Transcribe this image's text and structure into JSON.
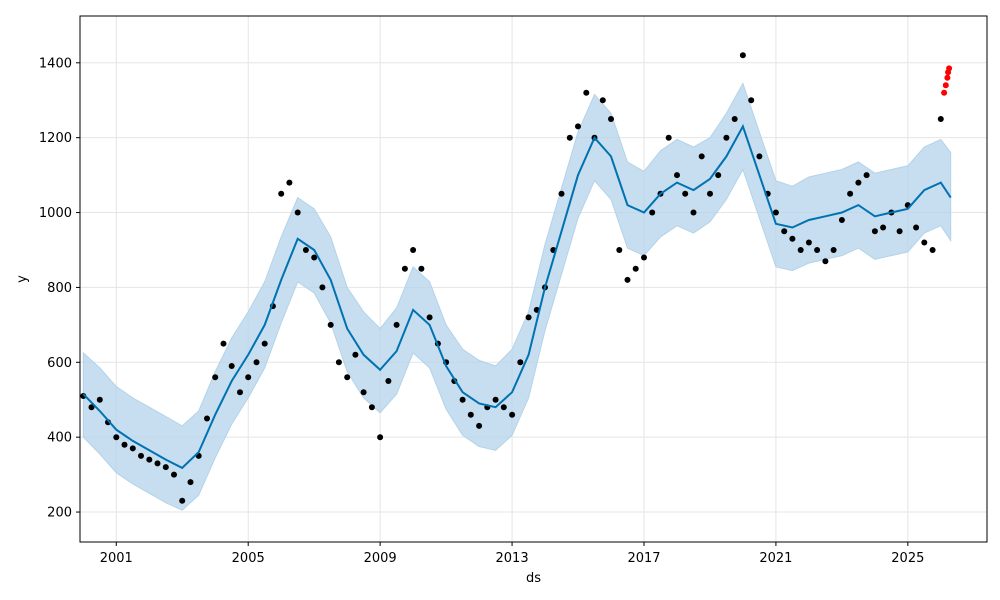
{
  "chart_data": {
    "type": "scatter",
    "xlabel": "ds",
    "ylabel": "y",
    "x_ticks": [
      "2001",
      "2005",
      "2009",
      "2013",
      "2017",
      "2021",
      "2025"
    ],
    "y_ticks": [
      "200",
      "400",
      "600",
      "800",
      "1000",
      "1200",
      "1400"
    ],
    "xlim": [
      1999.9,
      2027.4
    ],
    "ylim": [
      120,
      1525
    ],
    "grid": true,
    "colors": {
      "observed": "#000000",
      "recent": "#ff0000",
      "forecast": "#0072B2",
      "interval": "#B3D3EA",
      "grid": "#e5e5e5",
      "frame": "#000000"
    },
    "series": [
      {
        "role": "forecast",
        "x": [
          2000.0,
          2000.5,
          2001.0,
          2001.5,
          2002.0,
          2002.5,
          2003.0,
          2003.5,
          2004.0,
          2004.5,
          2005.0,
          2005.5,
          2006.0,
          2006.5,
          2007.0,
          2007.5,
          2008.0,
          2008.5,
          2009.0,
          2009.5,
          2010.0,
          2010.5,
          2011.0,
          2011.5,
          2012.0,
          2012.5,
          2013.0,
          2013.5,
          2014.0,
          2014.5,
          2015.0,
          2015.5,
          2016.0,
          2016.5,
          2017.0,
          2017.5,
          2018.0,
          2018.5,
          2019.0,
          2019.5,
          2020.0,
          2020.5,
          2021.0,
          2021.5,
          2022.0,
          2022.5,
          2023.0,
          2023.5,
          2024.0,
          2024.5,
          2025.0,
          2025.5,
          2026.0,
          2026.3
        ],
        "y": [
          515,
          470,
          420,
          390,
          365,
          340,
          318,
          360,
          460,
          550,
          620,
          700,
          820,
          930,
          900,
          820,
          690,
          620,
          580,
          630,
          740,
          700,
          590,
          520,
          490,
          480,
          520,
          620,
          800,
          950,
          1100,
          1200,
          1150,
          1020,
          1000,
          1050,
          1080,
          1060,
          1090,
          1150,
          1230,
          1100,
          970,
          960,
          980,
          990,
          1000,
          1020,
          990,
          1000,
          1010,
          1060,
          1080,
          1040
        ]
      },
      {
        "role": "interval_upper",
        "x": [
          2000.0,
          2000.5,
          2001.0,
          2001.5,
          2002.0,
          2002.5,
          2003.0,
          2003.5,
          2004.0,
          2004.5,
          2005.0,
          2005.5,
          2006.0,
          2006.5,
          2007.0,
          2007.5,
          2008.0,
          2008.5,
          2009.0,
          2009.5,
          2010.0,
          2010.5,
          2011.0,
          2011.5,
          2012.0,
          2012.5,
          2013.0,
          2013.5,
          2014.0,
          2014.5,
          2015.0,
          2015.5,
          2016.0,
          2016.5,
          2017.0,
          2017.5,
          2018.0,
          2018.5,
          2019.0,
          2019.5,
          2020.0,
          2020.5,
          2021.0,
          2021.5,
          2022.0,
          2022.5,
          2023.0,
          2023.5,
          2024.0,
          2024.5,
          2025.0,
          2025.5,
          2026.0,
          2026.3
        ],
        "y": [
          625,
          585,
          535,
          505,
          480,
          455,
          430,
          470,
          575,
          665,
          735,
          815,
          935,
          1040,
          1010,
          935,
          800,
          735,
          690,
          745,
          855,
          815,
          700,
          635,
          605,
          590,
          635,
          735,
          915,
          1065,
          1215,
          1315,
          1265,
          1135,
          1110,
          1165,
          1195,
          1175,
          1200,
          1265,
          1345,
          1215,
          1085,
          1070,
          1095,
          1105,
          1115,
          1135,
          1105,
          1115,
          1125,
          1175,
          1195,
          1160
        ]
      },
      {
        "role": "interval_lower",
        "x": [
          2000.0,
          2000.5,
          2001.0,
          2001.5,
          2002.0,
          2002.5,
          2003.0,
          2003.5,
          2004.0,
          2004.5,
          2005.0,
          2005.5,
          2006.0,
          2006.5,
          2007.0,
          2007.5,
          2008.0,
          2008.5,
          2009.0,
          2009.5,
          2010.0,
          2010.5,
          2011.0,
          2011.5,
          2012.0,
          2012.5,
          2013.0,
          2013.5,
          2014.0,
          2014.5,
          2015.0,
          2015.5,
          2016.0,
          2016.5,
          2017.0,
          2017.5,
          2018.0,
          2018.5,
          2019.0,
          2019.5,
          2020.0,
          2020.5,
          2021.0,
          2021.5,
          2022.0,
          2022.5,
          2023.0,
          2023.5,
          2024.0,
          2024.5,
          2025.0,
          2025.5,
          2026.0,
          2026.3
        ],
        "y": [
          400,
          355,
          305,
          275,
          250,
          225,
          205,
          245,
          345,
          435,
          505,
          585,
          705,
          815,
          785,
          705,
          575,
          505,
          465,
          515,
          625,
          585,
          475,
          405,
          375,
          365,
          405,
          505,
          685,
          835,
          985,
          1085,
          1035,
          905,
          885,
          935,
          965,
          945,
          975,
          1035,
          1115,
          985,
          855,
          845,
          865,
          875,
          885,
          905,
          875,
          885,
          895,
          945,
          965,
          925
        ]
      },
      {
        "role": "observed",
        "x": [
          2000.0,
          2000.25,
          2000.5,
          2000.75,
          2001.0,
          2001.25,
          2001.5,
          2001.75,
          2002.0,
          2002.25,
          2002.5,
          2002.75,
          2003.0,
          2003.25,
          2003.5,
          2003.75,
          2004.0,
          2004.25,
          2004.5,
          2004.75,
          2005.0,
          2005.25,
          2005.5,
          2005.75,
          2006.0,
          2006.25,
          2006.5,
          2006.75,
          2007.0,
          2007.25,
          2007.5,
          2007.75,
          2008.0,
          2008.25,
          2008.5,
          2008.75,
          2009.0,
          2009.25,
          2009.5,
          2009.75,
          2010.0,
          2010.25,
          2010.5,
          2010.75,
          2011.0,
          2011.25,
          2011.5,
          2011.75,
          2012.0,
          2012.25,
          2012.5,
          2012.75,
          2013.0,
          2013.25,
          2013.5,
          2013.75,
          2014.0,
          2014.25,
          2014.5,
          2014.75,
          2015.0,
          2015.25,
          2015.5,
          2015.75,
          2016.0,
          2016.25,
          2016.5,
          2016.75,
          2017.0,
          2017.25,
          2017.5,
          2017.75,
          2018.0,
          2018.25,
          2018.5,
          2018.75,
          2019.0,
          2019.25,
          2019.5,
          2019.75,
          2020.0,
          2020.25,
          2020.5,
          2020.75,
          2021.0,
          2021.25,
          2021.5,
          2021.75,
          2022.0,
          2022.25,
          2022.5,
          2022.75,
          2023.0,
          2023.25,
          2023.5,
          2023.75,
          2024.0,
          2024.25,
          2024.5,
          2024.75,
          2025.0,
          2025.25,
          2025.5,
          2025.75,
          2026.0
        ],
        "y": [
          510,
          480,
          500,
          440,
          400,
          380,
          370,
          350,
          340,
          330,
          320,
          300,
          230,
          280,
          350,
          450,
          560,
          650,
          590,
          520,
          560,
          600,
          650,
          750,
          1050,
          1080,
          1000,
          900,
          880,
          800,
          700,
          600,
          560,
          620,
          520,
          480,
          400,
          550,
          700,
          850,
          900,
          850,
          720,
          650,
          600,
          550,
          500,
          460,
          430,
          480,
          500,
          480,
          460,
          600,
          720,
          740,
          800,
          900,
          1050,
          1200,
          1230,
          1320,
          1200,
          1300,
          1250,
          900,
          820,
          850,
          880,
          1000,
          1050,
          1200,
          1100,
          1050,
          1000,
          1150,
          1050,
          1100,
          1200,
          1250,
          1420,
          1300,
          1150,
          1050,
          1000,
          950,
          930,
          900,
          920,
          900,
          870,
          900,
          980,
          1050,
          1080,
          1100,
          950,
          960,
          1000,
          950,
          1020,
          960,
          920,
          900,
          1250
        ]
      },
      {
        "role": "recent",
        "x": [
          2026.1,
          2026.15,
          2026.2,
          2026.22,
          2026.25
        ],
        "y": [
          1320,
          1340,
          1360,
          1375,
          1385
        ]
      }
    ]
  }
}
